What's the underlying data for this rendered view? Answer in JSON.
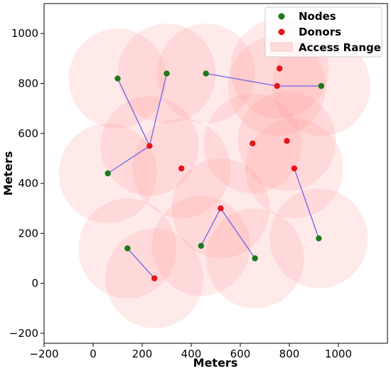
{
  "chart_data": {
    "type": "scatter",
    "xlabel": "Meters",
    "ylabel": "Meters",
    "xlim": [
      -200,
      1200
    ],
    "ylim": [
      -240,
      1120
    ],
    "xticks": [
      -200,
      0,
      200,
      400,
      600,
      800,
      1000
    ],
    "yticks": [
      -200,
      0,
      200,
      400,
      600,
      800,
      1000
    ],
    "tick_labels_x": [
      "−200",
      "0",
      "200",
      "400",
      "600",
      "800",
      "1000"
    ],
    "tick_labels_y": [
      "−200",
      "0",
      "200",
      "400",
      "600",
      "800",
      "1000"
    ],
    "grid": false,
    "legend_position": "top-right",
    "access_radius": 200,
    "series": [
      {
        "name": "Nodes",
        "color": "#1a7a1a",
        "points": [
          {
            "x": 100,
            "y": 820
          },
          {
            "x": 300,
            "y": 840
          },
          {
            "x": 460,
            "y": 840
          },
          {
            "x": 930,
            "y": 790
          },
          {
            "x": 60,
            "y": 440
          },
          {
            "x": 140,
            "y": 140
          },
          {
            "x": 440,
            "y": 150
          },
          {
            "x": 660,
            "y": 100
          },
          {
            "x": 920,
            "y": 180
          }
        ]
      },
      {
        "name": "Donors",
        "color": "#e8141b",
        "points": [
          {
            "x": 760,
            "y": 860
          },
          {
            "x": 750,
            "y": 790
          },
          {
            "x": 230,
            "y": 550
          },
          {
            "x": 650,
            "y": 560
          },
          {
            "x": 790,
            "y": 570
          },
          {
            "x": 360,
            "y": 460
          },
          {
            "x": 820,
            "y": 460
          },
          {
            "x": 520,
            "y": 300
          },
          {
            "x": 250,
            "y": 20
          }
        ]
      },
      {
        "name": "Access Range",
        "color": "#ffb3b3"
      }
    ],
    "links": [
      {
        "from": [
          100,
          820
        ],
        "to": [
          230,
          550
        ]
      },
      {
        "from": [
          300,
          840
        ],
        "to": [
          230,
          550
        ]
      },
      {
        "from": [
          60,
          440
        ],
        "to": [
          230,
          550
        ]
      },
      {
        "from": [
          460,
          840
        ],
        "to": [
          750,
          790
        ]
      },
      {
        "from": [
          930,
          790
        ],
        "to": [
          750,
          790
        ]
      },
      {
        "from": [
          440,
          150
        ],
        "to": [
          520,
          300
        ]
      },
      {
        "from": [
          660,
          100
        ],
        "to": [
          520,
          300
        ]
      },
      {
        "from": [
          920,
          180
        ],
        "to": [
          820,
          460
        ]
      },
      {
        "from": [
          140,
          140
        ],
        "to": [
          250,
          20
        ]
      }
    ],
    "link_color": "#6e64e8",
    "range_color": "rgba(255,150,150,0.2)"
  }
}
